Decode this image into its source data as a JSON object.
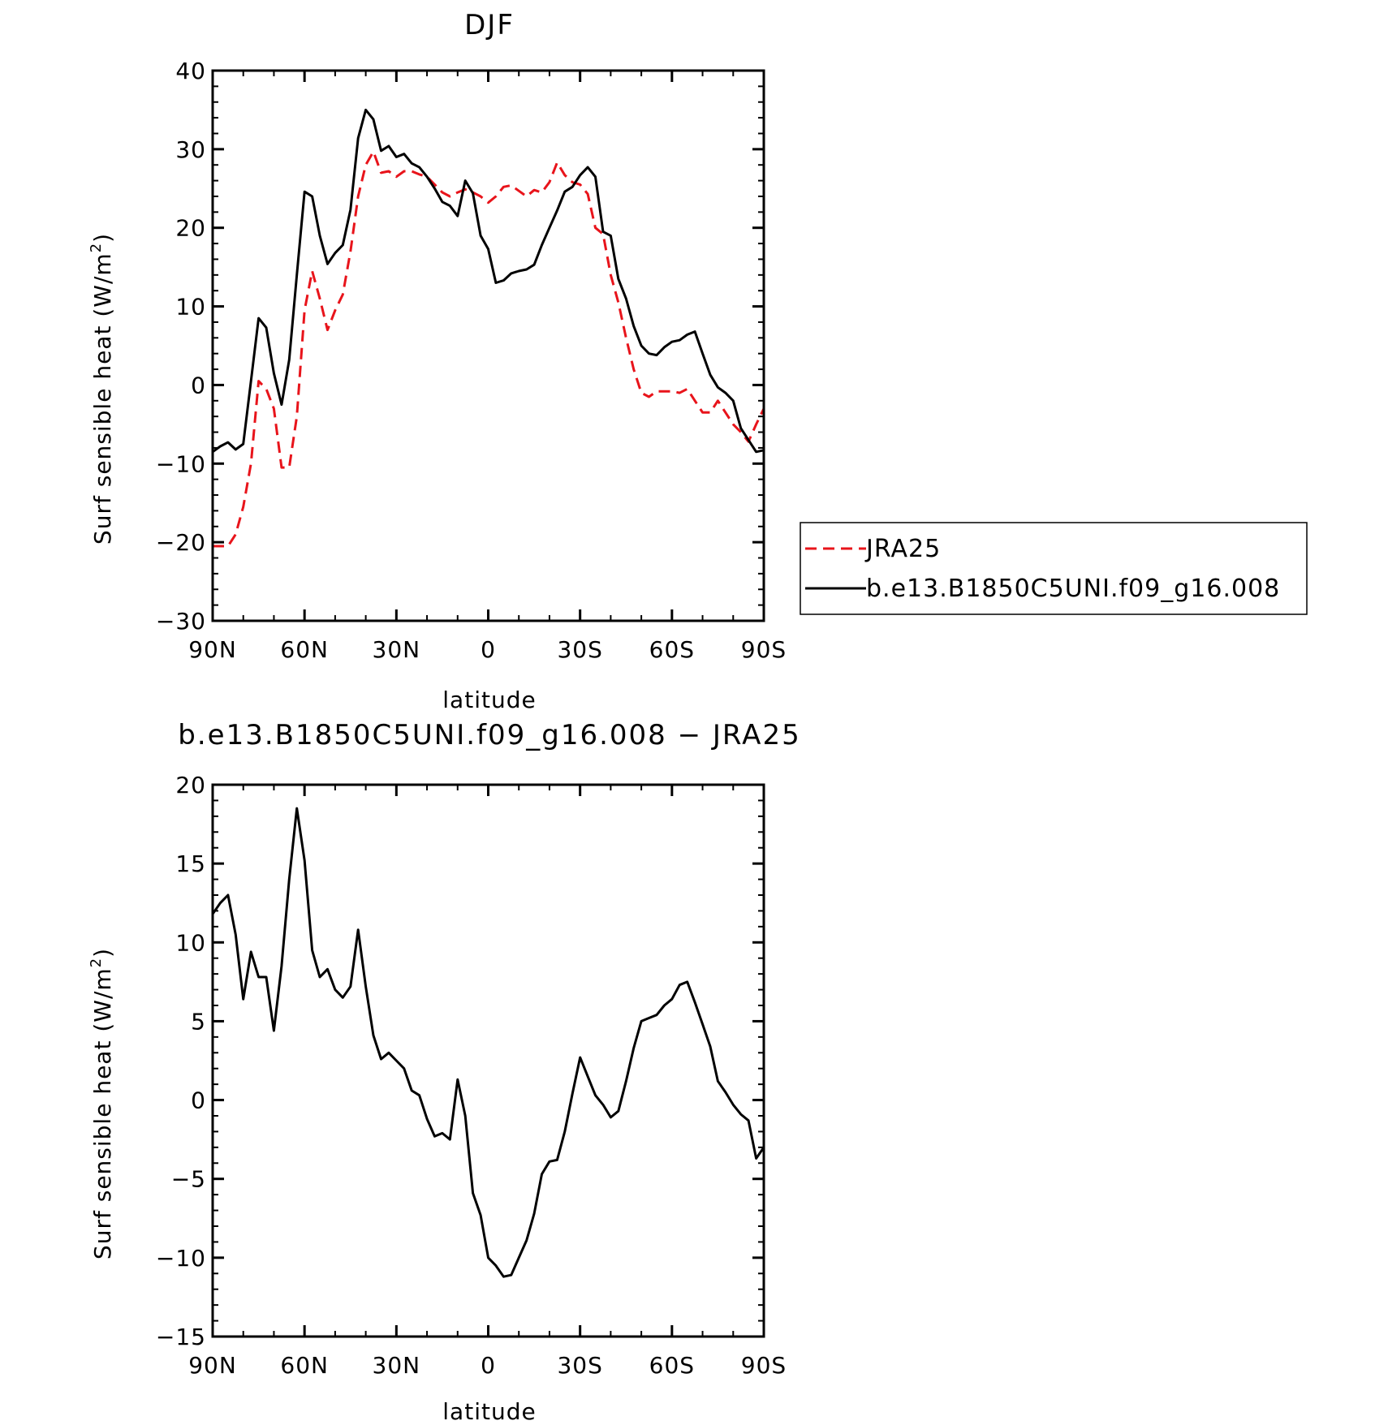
{
  "chart_data": [
    {
      "type": "line",
      "title": "DJF",
      "xlabel": "latitude",
      "ylabel": "Surf sensible heat (W/m",
      "ylabel_superscript": "2",
      "ylabel_suffix": ")",
      "xlim": [
        90,
        -90
      ],
      "ylim": [
        -30,
        40
      ],
      "xticks": [
        90,
        60,
        30,
        0,
        -30,
        -60,
        -90
      ],
      "xtick_labels": [
        "90N",
        "60N",
        "30N",
        "0",
        "30S",
        "60S",
        "90S"
      ],
      "yticks": [
        -30,
        -20,
        -10,
        0,
        10,
        20,
        30,
        40
      ],
      "ytick_labels": [
        "−30",
        "−20",
        "−10",
        "0",
        "10",
        "20",
        "30",
        "40"
      ],
      "legend": [
        "JRA25",
        "b.e13.B1850C5UNI.f09_g16.008"
      ],
      "series": [
        {
          "name": "JRA25",
          "color": "#e8141b",
          "dashed": true,
          "x": [
            90,
            87.5,
            85,
            82.5,
            80,
            77.5,
            75,
            72.5,
            70,
            67.5,
            65,
            62.5,
            60,
            57.5,
            55,
            52.5,
            50,
            47.5,
            45,
            42.5,
            40,
            37.5,
            35,
            32.5,
            30,
            27.5,
            25,
            22.5,
            20,
            17.5,
            15,
            12.5,
            10,
            7.5,
            5,
            2.5,
            0,
            -2.5,
            -5,
            -7.5,
            -10,
            -12.5,
            -15,
            -17.5,
            -20,
            -22.5,
            -25,
            -27.5,
            -30,
            -32.5,
            -35,
            -37.5,
            -40,
            -42.5,
            -45,
            -47.5,
            -50,
            -52.5,
            -55,
            -57.5,
            -60,
            -62.5,
            -65,
            -67.5,
            -70,
            -72.5,
            -75,
            -77.5,
            -80,
            -82.5,
            -85,
            -87.5,
            -90
          ],
          "values": [
            -20.5,
            -20.5,
            -20.5,
            -19,
            -15.5,
            -10,
            0.5,
            -0.5,
            -3,
            -10.5,
            -10.5,
            -4,
            9.5,
            14.5,
            11,
            7,
            9.5,
            11.5,
            17,
            24,
            28,
            29.7,
            27,
            27.2,
            26.5,
            27.2,
            27.2,
            26.8,
            26.5,
            25.5,
            24.5,
            24,
            24.5,
            24.9,
            24.5,
            24,
            23.2,
            24,
            25.2,
            25.4,
            24.7,
            24,
            24.8,
            24.5,
            25.8,
            28.3,
            26.7,
            25.8,
            25.5,
            24.3,
            20,
            19.2,
            14,
            10.5,
            6,
            2,
            -1,
            -1.5,
            -0.8,
            -0.8,
            -0.8,
            -1,
            -0.5,
            -2,
            -3.5,
            -3.5,
            -2,
            -3.5,
            -5,
            -6,
            -7.2,
            -5,
            -3
          ]
        },
        {
          "name": "b.e13.B1850C5UNI.f09_g16.008",
          "color": "#000000",
          "dashed": false,
          "x": [
            90,
            87.5,
            85,
            82.5,
            80,
            77.5,
            75,
            72.5,
            70,
            67.5,
            65,
            62.5,
            60,
            57.5,
            55,
            52.5,
            50,
            47.5,
            45,
            42.5,
            40,
            37.5,
            35,
            32.5,
            30,
            27.5,
            25,
            22.5,
            20,
            17.5,
            15,
            12.5,
            10,
            7.5,
            5,
            2.5,
            0,
            -2.5,
            -5,
            -7.5,
            -10,
            -12.5,
            -15,
            -17.5,
            -20,
            -22.5,
            -25,
            -27.5,
            -30,
            -32.5,
            -35,
            -37.5,
            -40,
            -42.5,
            -45,
            -47.5,
            -50,
            -52.5,
            -55,
            -57.5,
            -60,
            -62.5,
            -65,
            -67.5,
            -70,
            -72.5,
            -75,
            -77.5,
            -80,
            -82.5,
            -85,
            -87.5,
            -90
          ],
          "values": [
            -8.5,
            -7.8,
            -7.3,
            -8.2,
            -7.5,
            0.5,
            8.5,
            7.3,
            1.5,
            -2.5,
            3.2,
            14,
            24.6,
            24,
            19,
            15.4,
            16.8,
            17.8,
            22.3,
            31.4,
            35,
            33.8,
            29.8,
            30.4,
            29,
            29.4,
            28.2,
            27.7,
            26.5,
            25,
            23.3,
            22.8,
            21.5,
            26,
            24.4,
            19,
            17.3,
            13,
            13.3,
            14.2,
            14.5,
            14.7,
            15.3,
            17.8,
            20,
            22.2,
            24.6,
            25.2,
            26.7,
            27.7,
            26.5,
            19.5,
            19,
            13.5,
            11,
            7.5,
            5,
            4,
            3.8,
            4.8,
            5.5,
            5.7,
            6.4,
            6.8,
            4,
            1.3,
            -0.3,
            -1,
            -2,
            -5.5,
            -7,
            -8.5,
            -8.3
          ]
        }
      ]
    },
    {
      "type": "line",
      "title": "b.e13.B1850C5UNI.f09_g16.008 − JRA25",
      "xlabel": "latitude",
      "ylabel": "Surf sensible heat (W/m",
      "ylabel_superscript": "2",
      "ylabel_suffix": ")",
      "xlim": [
        90,
        -90
      ],
      "ylim": [
        -15,
        20
      ],
      "xticks": [
        90,
        60,
        30,
        0,
        -30,
        -60,
        -90
      ],
      "xtick_labels": [
        "90N",
        "60N",
        "30N",
        "0",
        "30S",
        "60S",
        "90S"
      ],
      "yticks": [
        -15,
        -10,
        -5,
        0,
        5,
        10,
        15,
        20
      ],
      "ytick_labels": [
        "−15",
        "−10",
        "−5",
        "0",
        "5",
        "10",
        "15",
        "20"
      ],
      "series": [
        {
          "name": "b.e13.B1850C5UNI.f09_g16.008 − JRA25",
          "color": "#000000",
          "dashed": false,
          "x": [
            90,
            87.5,
            85,
            82.5,
            80,
            77.5,
            75,
            72.5,
            70,
            67.5,
            65,
            62.5,
            60,
            57.5,
            55,
            52.5,
            50,
            47.5,
            45,
            42.5,
            40,
            37.5,
            35,
            32.5,
            30,
            27.5,
            25,
            22.5,
            20,
            17.5,
            15,
            12.5,
            10,
            7.5,
            5,
            2.5,
            0,
            -2.5,
            -5,
            -7.5,
            -10,
            -12.5,
            -15,
            -17.5,
            -20,
            -22.5,
            -25,
            -27.5,
            -30,
            -32.5,
            -35,
            -37.5,
            -40,
            -42.5,
            -45,
            -47.5,
            -50,
            -52.5,
            -55,
            -57.5,
            -60,
            -62.5,
            -65,
            -67.5,
            -70,
            -72.5,
            -75,
            -77.5,
            -80,
            -82.5,
            -85,
            -87.5,
            -90
          ],
          "values": [
            11.8,
            12.5,
            13,
            10.5,
            6.4,
            9.4,
            7.8,
            7.8,
            4.4,
            8.5,
            14,
            18.5,
            15.2,
            9.5,
            7.8,
            8.3,
            7,
            6.5,
            7.2,
            10.8,
            7.2,
            4.1,
            2.6,
            3,
            2.5,
            2,
            0.6,
            0.3,
            -1.2,
            -2.3,
            -2.1,
            -2.5,
            1.3,
            -1,
            -5.9,
            -7.3,
            -10,
            -10.5,
            -11.2,
            -11.1,
            -10,
            -8.9,
            -7.2,
            -4.7,
            -3.9,
            -3.8,
            -2,
            0.4,
            2.7,
            1.5,
            0.3,
            -0.3,
            -1.1,
            -0.7,
            1.2,
            3.3,
            5,
            5.2,
            5.4,
            6,
            6.4,
            7.3,
            7.5,
            6.2,
            4.8,
            3.4,
            1.2,
            0.5,
            -0.3,
            -0.9,
            -1.3,
            -3.7,
            -3
          ]
        }
      ]
    }
  ]
}
